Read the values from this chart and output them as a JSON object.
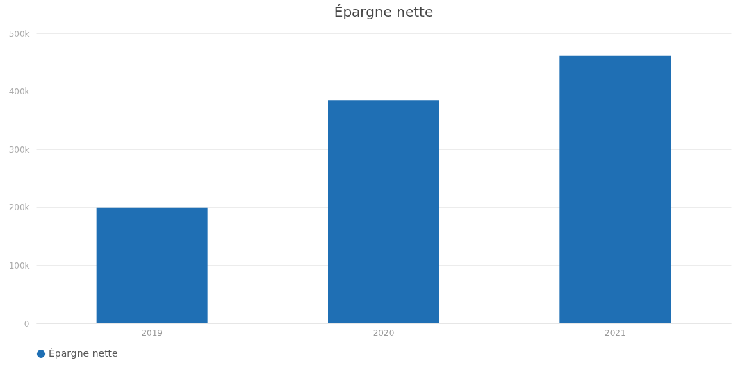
{
  "chart_data": {
    "type": "bar",
    "title": "Épargne nette",
    "categories": [
      "2019",
      "2020",
      "2021"
    ],
    "series": [
      {
        "name": "Épargne nette",
        "color": "#1f6fb4",
        "values": [
          199000,
          385000,
          462000
        ]
      }
    ],
    "ylim": [
      0,
      500000
    ],
    "yticks": [
      0,
      {
        "value": 100000,
        "label": "100k"
      },
      {
        "value": 200000,
        "label": "200k"
      },
      {
        "value": 300000,
        "label": "300k"
      },
      {
        "value": 400000,
        "label": "400k"
      },
      {
        "value": 500000,
        "label": "500k"
      }
    ],
    "grid": "y",
    "legend": "bottom"
  }
}
